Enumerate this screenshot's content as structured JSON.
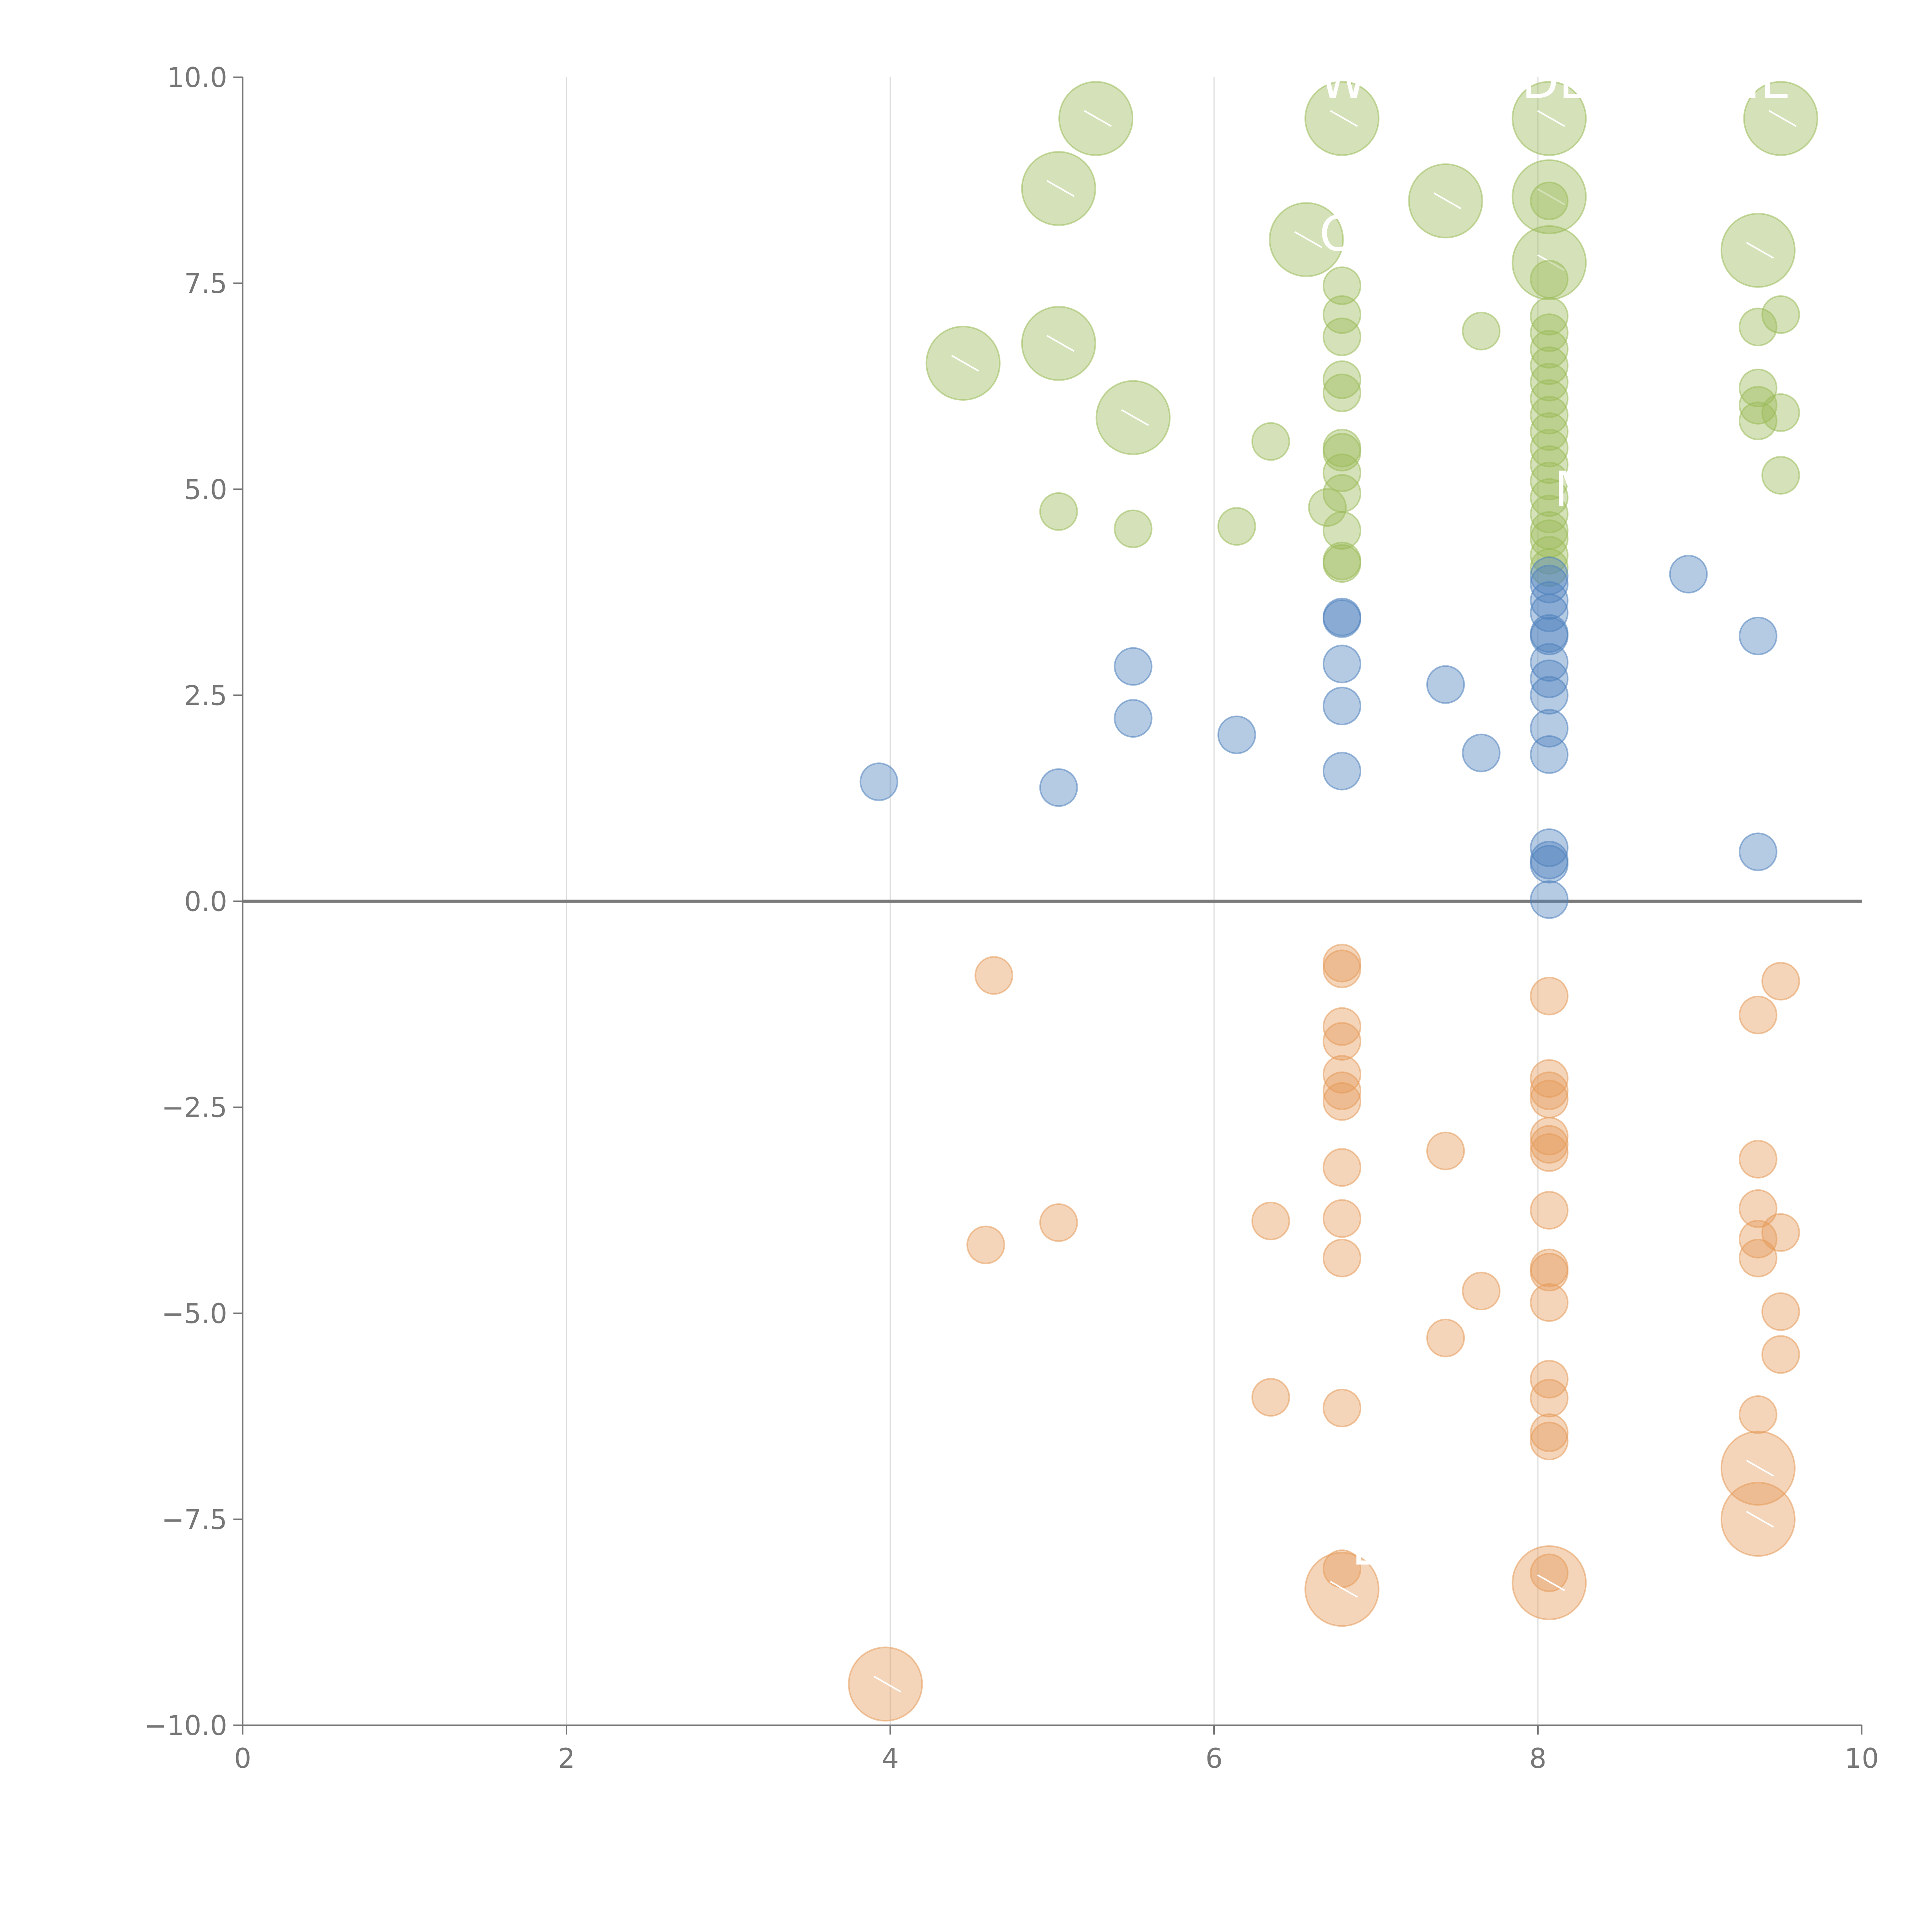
{
  "chart_data": {
    "type": "scatter",
    "title": "",
    "xlabel": "",
    "ylabel": "",
    "xlim": [
      0,
      10
    ],
    "ylim": [
      -10,
      10
    ],
    "x_ticks": [
      0,
      2,
      4,
      6,
      8,
      10
    ],
    "x_tick_labels": [
      "0",
      "2",
      "4",
      "6",
      "8",
      "10"
    ],
    "y_ticks": [
      10,
      7.5,
      5,
      2.5,
      0,
      -2.5,
      -5,
      -7.5,
      -10
    ],
    "y_tick_labels": [
      "10.0",
      "7.5",
      "5.0",
      "2.5",
      "0.0",
      "−2.5",
      "−5.0",
      "−7.5",
      "−10.0"
    ],
    "vertical_gridlines_at": [
      2,
      4,
      6,
      8
    ],
    "zero_line": true,
    "legend": "none",
    "size_levels": {
      "small": 1,
      "large": 2
    },
    "series": [
      {
        "name": "green",
        "color": "#9bbb59",
        "points": [
          {
            "x": 5.27,
            "y": 9.5,
            "size": "large"
          },
          {
            "x": 6.79,
            "y": 9.5,
            "size": "large"
          },
          {
            "x": 8.07,
            "y": 9.5,
            "size": "large"
          },
          {
            "x": 9.5,
            "y": 9.5,
            "size": "large"
          },
          {
            "x": 5.04,
            "y": 8.65,
            "size": "large"
          },
          {
            "x": 7.43,
            "y": 8.5,
            "size": "large"
          },
          {
            "x": 8.07,
            "y": 8.55,
            "size": "large"
          },
          {
            "x": 6.57,
            "y": 8.03,
            "size": "large"
          },
          {
            "x": 9.36,
            "y": 7.9,
            "size": "large"
          },
          {
            "x": 8.07,
            "y": 7.75,
            "size": "large"
          },
          {
            "x": 4.45,
            "y": 6.53,
            "size": "large"
          },
          {
            "x": 5.04,
            "y": 6.77,
            "size": "large"
          },
          {
            "x": 5.5,
            "y": 5.87,
            "size": "large"
          },
          {
            "x": 8.07,
            "y": 8.5,
            "size": "small"
          },
          {
            "x": 6.79,
            "y": 7.47,
            "size": "small"
          },
          {
            "x": 8.07,
            "y": 7.55,
            "size": "small"
          },
          {
            "x": 6.79,
            "y": 7.12,
            "size": "small"
          },
          {
            "x": 8.07,
            "y": 7.1,
            "size": "small"
          },
          {
            "x": 9.5,
            "y": 7.12,
            "size": "small"
          },
          {
            "x": 7.65,
            "y": 6.92,
            "size": "small"
          },
          {
            "x": 9.36,
            "y": 6.97,
            "size": "small"
          },
          {
            "x": 6.79,
            "y": 6.85,
            "size": "small"
          },
          {
            "x": 8.07,
            "y": 6.9,
            "size": "small"
          },
          {
            "x": 8.07,
            "y": 6.7,
            "size": "small"
          },
          {
            "x": 8.07,
            "y": 6.5,
            "size": "small"
          },
          {
            "x": 6.79,
            "y": 6.33,
            "size": "small"
          },
          {
            "x": 8.07,
            "y": 6.3,
            "size": "small"
          },
          {
            "x": 9.36,
            "y": 6.23,
            "size": "small"
          },
          {
            "x": 6.79,
            "y": 6.17,
            "size": "small"
          },
          {
            "x": 8.07,
            "y": 6.1,
            "size": "small"
          },
          {
            "x": 9.36,
            "y": 6.02,
            "size": "small"
          },
          {
            "x": 9.5,
            "y": 5.93,
            "size": "small"
          },
          {
            "x": 8.07,
            "y": 5.9,
            "size": "small"
          },
          {
            "x": 9.36,
            "y": 5.83,
            "size": "small"
          },
          {
            "x": 8.07,
            "y": 5.7,
            "size": "small"
          },
          {
            "x": 6.35,
            "y": 5.58,
            "size": "small"
          },
          {
            "x": 8.07,
            "y": 5.5,
            "size": "small"
          },
          {
            "x": 6.79,
            "y": 5.5,
            "size": "small"
          },
          {
            "x": 6.79,
            "y": 5.45,
            "size": "small"
          },
          {
            "x": 8.07,
            "y": 5.3,
            "size": "small"
          },
          {
            "x": 6.79,
            "y": 5.2,
            "size": "small"
          },
          {
            "x": 9.5,
            "y": 5.17,
            "size": "small"
          },
          {
            "x": 8.07,
            "y": 5.1,
            "size": "small"
          },
          {
            "x": 6.79,
            "y": 4.95,
            "size": "small"
          },
          {
            "x": 8.07,
            "y": 4.9,
            "size": "small"
          },
          {
            "x": 6.7,
            "y": 4.78,
            "size": "small"
          },
          {
            "x": 5.04,
            "y": 4.73,
            "size": "small"
          },
          {
            "x": 8.07,
            "y": 4.7,
            "size": "small"
          },
          {
            "x": 6.14,
            "y": 4.55,
            "size": "small"
          },
          {
            "x": 5.5,
            "y": 4.52,
            "size": "small"
          },
          {
            "x": 6.79,
            "y": 4.5,
            "size": "small"
          },
          {
            "x": 8.07,
            "y": 4.5,
            "size": "small"
          },
          {
            "x": 8.07,
            "y": 4.4,
            "size": "small"
          },
          {
            "x": 8.07,
            "y": 4.2,
            "size": "small"
          },
          {
            "x": 6.79,
            "y": 4.13,
            "size": "small"
          },
          {
            "x": 6.79,
            "y": 4.1,
            "size": "small"
          },
          {
            "x": 8.07,
            "y": 4.05,
            "size": "small"
          }
        ]
      },
      {
        "name": "blue",
        "color": "#4f81bd",
        "points": [
          {
            "x": 8.07,
            "y": 3.95,
            "size": "small"
          },
          {
            "x": 8.93,
            "y": 3.97,
            "size": "small"
          },
          {
            "x": 8.07,
            "y": 3.85,
            "size": "small"
          },
          {
            "x": 8.07,
            "y": 3.65,
            "size": "small"
          },
          {
            "x": 8.07,
            "y": 3.5,
            "size": "small"
          },
          {
            "x": 6.79,
            "y": 3.45,
            "size": "small"
          },
          {
            "x": 6.79,
            "y": 3.43,
            "size": "small"
          },
          {
            "x": 8.07,
            "y": 3.25,
            "size": "small"
          },
          {
            "x": 8.07,
            "y": 3.22,
            "size": "small"
          },
          {
            "x": 9.36,
            "y": 3.22,
            "size": "small"
          },
          {
            "x": 8.07,
            "y": 2.9,
            "size": "small"
          },
          {
            "x": 6.79,
            "y": 2.88,
            "size": "small"
          },
          {
            "x": 5.5,
            "y": 2.85,
            "size": "small"
          },
          {
            "x": 8.07,
            "y": 2.7,
            "size": "small"
          },
          {
            "x": 7.43,
            "y": 2.63,
            "size": "small"
          },
          {
            "x": 8.07,
            "y": 2.5,
            "size": "small"
          },
          {
            "x": 6.79,
            "y": 2.37,
            "size": "small"
          },
          {
            "x": 5.5,
            "y": 2.22,
            "size": "small"
          },
          {
            "x": 8.07,
            "y": 2.1,
            "size": "small"
          },
          {
            "x": 6.14,
            "y": 2.02,
            "size": "small"
          },
          {
            "x": 7.65,
            "y": 1.8,
            "size": "small"
          },
          {
            "x": 8.07,
            "y": 1.78,
            "size": "small"
          },
          {
            "x": 6.79,
            "y": 1.58,
            "size": "small"
          },
          {
            "x": 3.93,
            "y": 1.45,
            "size": "small"
          },
          {
            "x": 5.04,
            "y": 1.38,
            "size": "small"
          },
          {
            "x": 8.07,
            "y": 0.65,
            "size": "small"
          },
          {
            "x": 9.36,
            "y": 0.6,
            "size": "small"
          },
          {
            "x": 8.07,
            "y": 0.5,
            "size": "small"
          },
          {
            "x": 8.07,
            "y": 0.45,
            "size": "small"
          },
          {
            "x": 8.07,
            "y": 0.02,
            "size": "small"
          }
        ]
      },
      {
        "name": "orange",
        "color": "#e59a5a",
        "points": [
          {
            "x": 6.79,
            "y": -0.75,
            "size": "small"
          },
          {
            "x": 6.79,
            "y": -0.82,
            "size": "small"
          },
          {
            "x": 4.64,
            "y": -0.9,
            "size": "small"
          },
          {
            "x": 9.5,
            "y": -0.97,
            "size": "small"
          },
          {
            "x": 8.07,
            "y": -1.15,
            "size": "small"
          },
          {
            "x": 9.36,
            "y": -1.38,
            "size": "small"
          },
          {
            "x": 6.79,
            "y": -1.52,
            "size": "small"
          },
          {
            "x": 6.79,
            "y": -1.7,
            "size": "small"
          },
          {
            "x": 6.79,
            "y": -2.1,
            "size": "small"
          },
          {
            "x": 8.07,
            "y": -2.15,
            "size": "small"
          },
          {
            "x": 6.79,
            "y": -2.3,
            "size": "small"
          },
          {
            "x": 8.07,
            "y": -2.3,
            "size": "small"
          },
          {
            "x": 8.07,
            "y": -2.4,
            "size": "small"
          },
          {
            "x": 6.79,
            "y": -2.43,
            "size": "small"
          },
          {
            "x": 8.07,
            "y": -2.85,
            "size": "small"
          },
          {
            "x": 8.07,
            "y": -2.95,
            "size": "small"
          },
          {
            "x": 7.43,
            "y": -3.03,
            "size": "small"
          },
          {
            "x": 8.07,
            "y": -3.05,
            "size": "small"
          },
          {
            "x": 9.36,
            "y": -3.13,
            "size": "small"
          },
          {
            "x": 6.79,
            "y": -3.23,
            "size": "small"
          },
          {
            "x": 8.07,
            "y": -3.75,
            "size": "small"
          },
          {
            "x": 9.36,
            "y": -3.73,
            "size": "small"
          },
          {
            "x": 6.35,
            "y": -3.88,
            "size": "small"
          },
          {
            "x": 6.79,
            "y": -3.85,
            "size": "small"
          },
          {
            "x": 5.04,
            "y": -3.9,
            "size": "small"
          },
          {
            "x": 9.5,
            "y": -4.02,
            "size": "small"
          },
          {
            "x": 9.36,
            "y": -4.1,
            "size": "small"
          },
          {
            "x": 4.59,
            "y": -4.17,
            "size": "small"
          },
          {
            "x": 9.36,
            "y": -4.33,
            "size": "small"
          },
          {
            "x": 6.79,
            "y": -4.33,
            "size": "small"
          },
          {
            "x": 8.07,
            "y": -4.45,
            "size": "small"
          },
          {
            "x": 8.07,
            "y": -4.5,
            "size": "small"
          },
          {
            "x": 7.65,
            "y": -4.73,
            "size": "small"
          },
          {
            "x": 8.07,
            "y": -4.87,
            "size": "small"
          },
          {
            "x": 9.5,
            "y": -4.98,
            "size": "small"
          },
          {
            "x": 7.43,
            "y": -5.3,
            "size": "small"
          },
          {
            "x": 9.5,
            "y": -5.5,
            "size": "small"
          },
          {
            "x": 8.07,
            "y": -5.8,
            "size": "small"
          },
          {
            "x": 6.35,
            "y": -6.02,
            "size": "small"
          },
          {
            "x": 8.07,
            "y": -6.03,
            "size": "small"
          },
          {
            "x": 6.79,
            "y": -6.15,
            "size": "small"
          },
          {
            "x": 9.36,
            "y": -6.23,
            "size": "small"
          },
          {
            "x": 8.07,
            "y": -6.45,
            "size": "small"
          },
          {
            "x": 8.07,
            "y": -6.55,
            "size": "small"
          },
          {
            "x": 6.79,
            "y": -8.1,
            "size": "small"
          },
          {
            "x": 8.07,
            "y": -8.15,
            "size": "small"
          },
          {
            "x": 9.36,
            "y": -6.88,
            "size": "large"
          },
          {
            "x": 9.36,
            "y": -7.5,
            "size": "large"
          },
          {
            "x": 6.79,
            "y": -8.35,
            "size": "large"
          },
          {
            "x": 8.07,
            "y": -8.27,
            "size": "large"
          },
          {
            "x": 3.97,
            "y": -9.5,
            "size": "large"
          }
        ]
      }
    ],
    "annotations": [
      {
        "text": "WO",
        "x": 6.65,
        "y": 9.75
      },
      {
        "text": "DE",
        "x": 7.9,
        "y": 9.75
      },
      {
        "text": "NE",
        "x": 9.15,
        "y": 9.75
      },
      {
        "text": "O",
        "x": 6.65,
        "y": 7.9
      },
      {
        "text": "M",
        "x": 8.1,
        "y": 4.8
      },
      {
        "text": "E",
        "x": 6.85,
        "y": -8.05
      }
    ]
  }
}
